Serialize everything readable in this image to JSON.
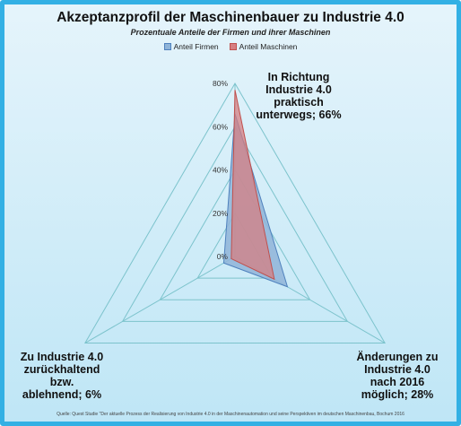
{
  "title": "Akzeptanzprofil der Maschinenbauer zu Industrie 4.0",
  "subtitle": "Prozentuale Anteile der Firmen  und ihrer Maschinen",
  "source": "Quelle: Quest Studie \"Der aktuelle Prozess der Realisierung von Industrie 4.0 in der Maschinenautomation und seine Perspektiven im deutschen Maschinenbau, Bochum 2016",
  "colors": {
    "frame": "#33b0e4",
    "grid": "#7cc3cc",
    "firmen_fill": "#8fb4d8",
    "firmen_stroke": "#4f81bd",
    "maschinen_fill": "#d67f81",
    "maschinen_stroke": "#c0504d"
  },
  "chart_data": {
    "type": "radar",
    "ylim": [
      0,
      80
    ],
    "ticks": [
      "0%",
      "20%",
      "40%",
      "60%",
      "80%"
    ],
    "tick_values": [
      0,
      20,
      40,
      60,
      80
    ],
    "categories": [
      [
        "In Richtung",
        "Industrie 4.0",
        "praktisch",
        "unterwegs; 66%"
      ],
      [
        "Änderungen zu",
        "Industrie 4.0",
        "nach 2016",
        "möglich; 28%"
      ],
      [
        "Zu Industrie 4.0",
        "zurückhaltend",
        "bzw.",
        "ablehnend; 6%"
      ]
    ],
    "series": [
      {
        "name": "Anteil Firmen",
        "values": [
          66,
          28,
          6
        ]
      },
      {
        "name": "Anteil Maschinen",
        "values": [
          77,
          21,
          2
        ]
      }
    ],
    "legend": "top"
  }
}
